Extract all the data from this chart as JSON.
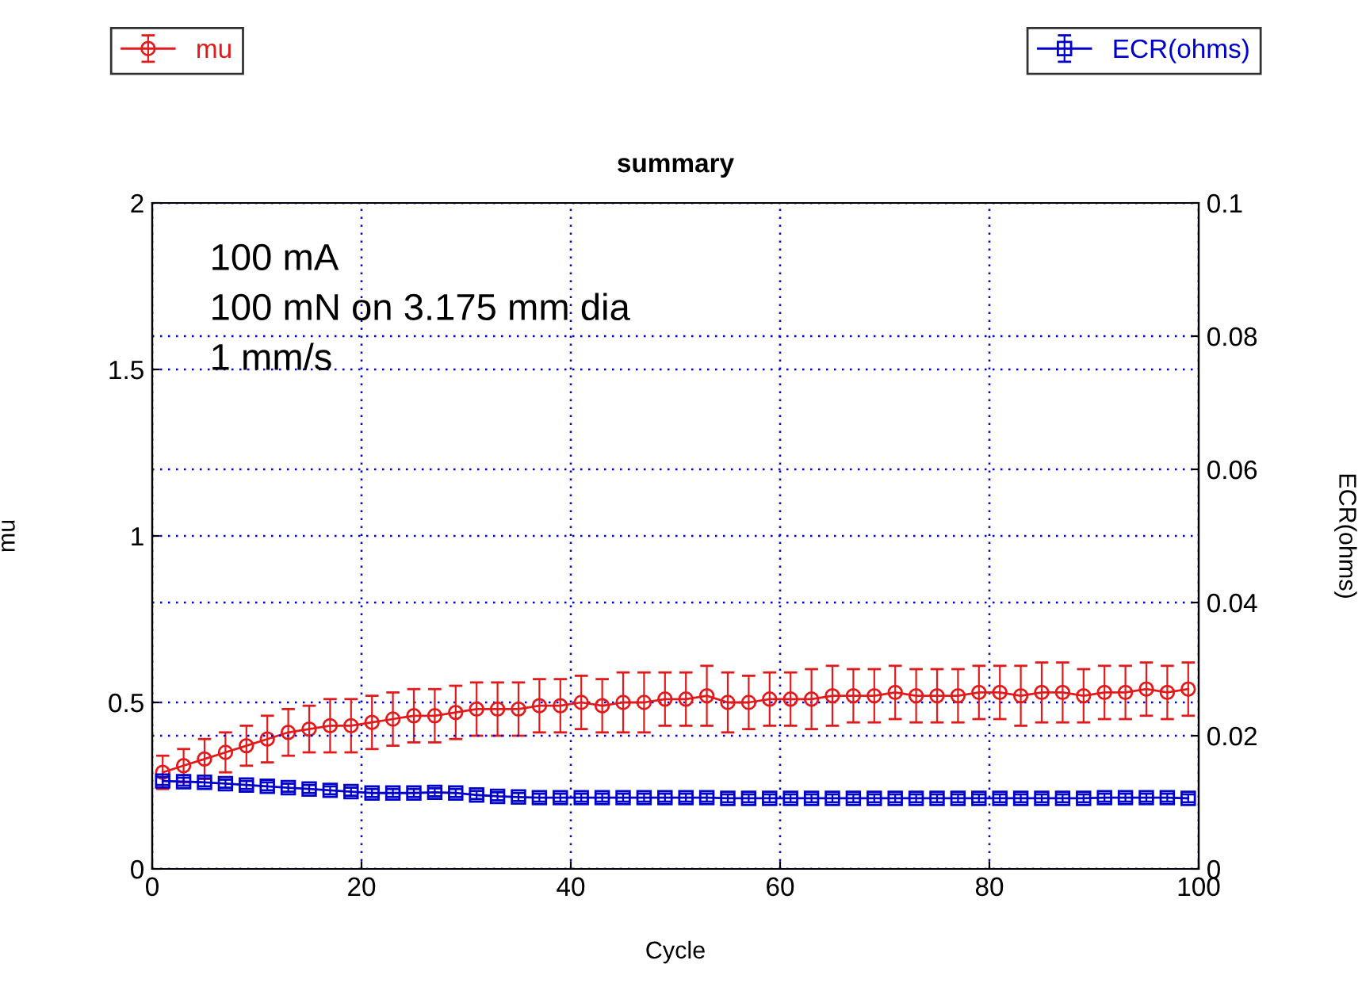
{
  "chart_data": {
    "type": "line",
    "title": "summary",
    "xlabel": "Cycle",
    "ylabel": "mu",
    "y2label": "ECR(ohms)",
    "annotations": [
      "100 mA",
      "100 mN on 3.175 mm dia",
      "1 mm/s"
    ],
    "x": [
      1,
      3,
      5,
      7,
      9,
      11,
      13,
      15,
      17,
      19,
      21,
      23,
      25,
      27,
      29,
      31,
      33,
      35,
      37,
      39,
      41,
      43,
      45,
      47,
      49,
      51,
      53,
      55,
      57,
      59,
      61,
      63,
      65,
      67,
      69,
      71,
      73,
      75,
      77,
      79,
      81,
      83,
      85,
      87,
      89,
      91,
      93,
      95,
      97,
      99
    ],
    "series": [
      {
        "name": "mu",
        "color": "#e31a1c",
        "marker": "circle",
        "values": [
          0.29,
          0.31,
          0.33,
          0.35,
          0.37,
          0.39,
          0.41,
          0.42,
          0.43,
          0.43,
          0.44,
          0.45,
          0.46,
          0.46,
          0.47,
          0.48,
          0.48,
          0.48,
          0.49,
          0.49,
          0.5,
          0.49,
          0.5,
          0.5,
          0.51,
          0.51,
          0.52,
          0.5,
          0.5,
          0.51,
          0.51,
          0.51,
          0.52,
          0.52,
          0.52,
          0.53,
          0.52,
          0.52,
          0.52,
          0.53,
          0.53,
          0.52,
          0.53,
          0.53,
          0.52,
          0.53,
          0.53,
          0.54,
          0.53,
          0.54
        ],
        "errors": [
          0.05,
          0.05,
          0.06,
          0.06,
          0.06,
          0.07,
          0.07,
          0.07,
          0.08,
          0.08,
          0.08,
          0.08,
          0.08,
          0.08,
          0.08,
          0.08,
          0.08,
          0.08,
          0.08,
          0.08,
          0.08,
          0.08,
          0.09,
          0.09,
          0.08,
          0.08,
          0.09,
          0.09,
          0.08,
          0.08,
          0.08,
          0.09,
          0.09,
          0.08,
          0.08,
          0.08,
          0.08,
          0.08,
          0.08,
          0.08,
          0.08,
          0.09,
          0.09,
          0.09,
          0.08,
          0.08,
          0.08,
          0.08,
          0.08,
          0.08
        ]
      },
      {
        "name": "ECR(ohms)",
        "color": "#0000cc",
        "marker": "square",
        "axis": "y2",
        "values": [
          0.0132,
          0.0131,
          0.013,
          0.0128,
          0.0126,
          0.0124,
          0.0122,
          0.012,
          0.0118,
          0.0116,
          0.0114,
          0.0114,
          0.0114,
          0.0115,
          0.0114,
          0.0111,
          0.0109,
          0.0108,
          0.0107,
          0.0107,
          0.0107,
          0.0107,
          0.0107,
          0.0107,
          0.0107,
          0.0107,
          0.0107,
          0.0106,
          0.0106,
          0.0106,
          0.0106,
          0.0106,
          0.0106,
          0.0106,
          0.0106,
          0.0106,
          0.0106,
          0.0106,
          0.0106,
          0.0106,
          0.0106,
          0.0106,
          0.0106,
          0.0106,
          0.0106,
          0.0107,
          0.0107,
          0.0107,
          0.0107,
          0.0106
        ],
        "errors": [
          0.0006,
          0.0006,
          0.0006,
          0.0006,
          0.0006,
          0.0006,
          0.0006,
          0.0006,
          0.0006,
          0.0006,
          0.0006,
          0.0006,
          0.0006,
          0.0006,
          0.0006,
          0.0006,
          0.0006,
          0.0006,
          0.0006,
          0.0006,
          0.0006,
          0.0006,
          0.0006,
          0.0006,
          0.0006,
          0.0006,
          0.0006,
          0.0006,
          0.0006,
          0.0006,
          0.0006,
          0.0006,
          0.0006,
          0.0006,
          0.0006,
          0.0006,
          0.0006,
          0.0006,
          0.0006,
          0.0006,
          0.0006,
          0.0006,
          0.0006,
          0.0006,
          0.0006,
          0.0006,
          0.0006,
          0.0006,
          0.0006,
          0.0006
        ]
      }
    ],
    "xlim": [
      0,
      100
    ],
    "xticks": [
      0,
      20,
      40,
      60,
      80,
      100
    ],
    "ylim": [
      0,
      2
    ],
    "yticks": [
      0,
      0.5,
      1,
      1.5,
      2
    ],
    "y2lim": [
      0,
      0.1
    ],
    "y2ticks": [
      0,
      0.02,
      0.04,
      0.06,
      0.08,
      0.1
    ],
    "grid": true,
    "legend": "top",
    "line_style": "solid"
  }
}
